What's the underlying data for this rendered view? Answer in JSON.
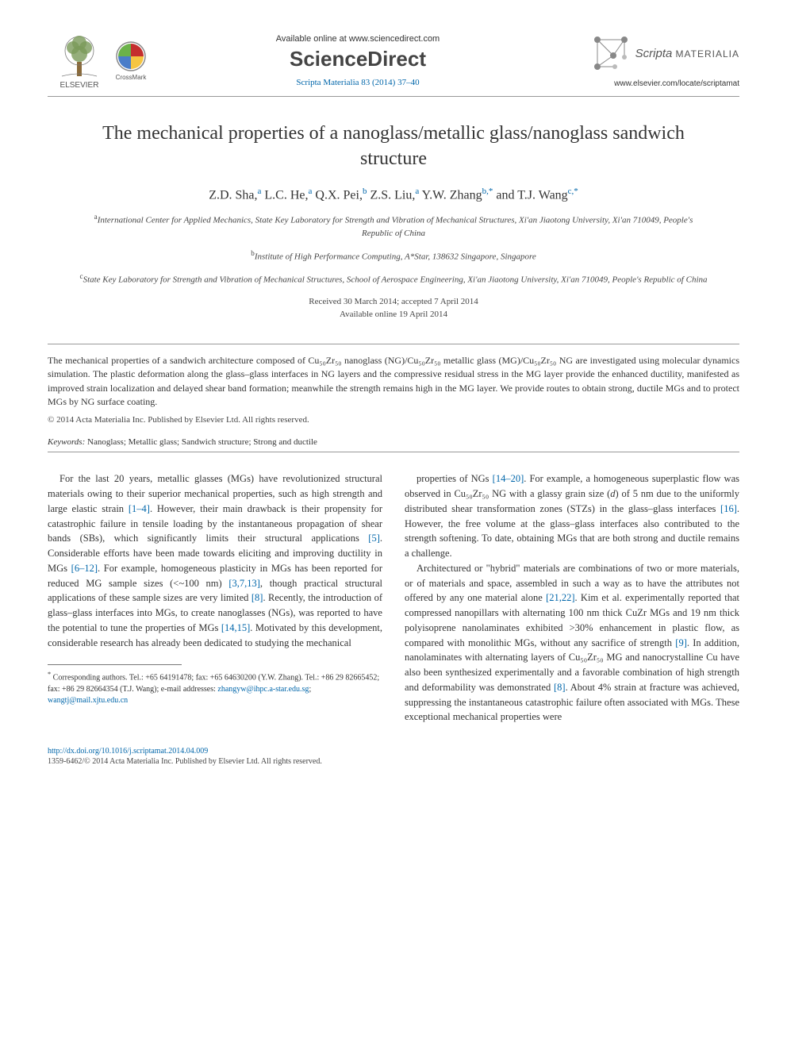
{
  "header": {
    "elsevier_label": "ELSEVIER",
    "crossmark_label": "CrossMark",
    "available_online": "Available online at www.sciencedirect.com",
    "sciencedirect": "ScienceDirect",
    "citation": "Scripta Materialia 83 (2014) 37–40",
    "journal_name_ital": "Scripta",
    "journal_name_caps": "MATERIALIA",
    "journal_url": "www.elsevier.com/locate/scriptamat"
  },
  "colors": {
    "link": "#0066aa",
    "text": "#333333",
    "rule": "#999999",
    "elsevier_orange": "#e67817",
    "crossmark_red": "#c42e2e",
    "crossmark_yellow": "#f5c542",
    "crossmark_blue": "#4a7dc9",
    "crossmark_green": "#6bb24a",
    "scripta_gray": "#888888"
  },
  "title": "The mechanical properties of a nanoglass/metallic glass/nanoglass sandwich structure",
  "authors_html": "Z.D. Sha,<sup>a</sup> L.C. He,<sup>a</sup> Q.X. Pei,<sup>b</sup> Z.S. Liu,<sup>a</sup> Y.W. Zhang<sup>b,*</sup> and T.J. Wang<sup>c,*</sup>",
  "affiliations": [
    "<sup>a</sup>International Center for Applied Mechanics, State Key Laboratory for Strength and Vibration of Mechanical Structures, Xi'an Jiaotong University, Xi'an 710049, People's Republic of China",
    "<sup>b</sup>Institute of High Performance Computing, A*Star, 138632 Singapore, Singapore",
    "<sup>c</sup>State Key Laboratory for Strength and Vibration of Mechanical Structures, School of Aerospace Engineering, Xi'an Jiaotong University, Xi'an 710049, People's Republic of China"
  ],
  "dates": {
    "received_accepted": "Received 30 March 2014; accepted 7 April 2014",
    "available": "Available online 19 April 2014"
  },
  "abstract": "The mechanical properties of a sandwich architecture composed of Cu₅₀Zr₅₀ nanoglass (NG)/Cu₅₀Zr₅₀ metallic glass (MG)/Cu₅₀Zr₅₀ NG are investigated using molecular dynamics simulation. The plastic deformation along the glass–glass interfaces in NG layers and the compressive residual stress in the MG layer provide the enhanced ductility, manifested as improved strain localization and delayed shear band formation; meanwhile the strength remains high in the MG layer. We provide routes to obtain strong, ductile MGs and to protect MGs by NG surface coating.",
  "copyright": "© 2014 Acta Materialia Inc. Published by Elsevier Ltd. All rights reserved.",
  "keywords_label": "Keywords:",
  "keywords_text": " Nanoglass; Metallic glass; Sandwich structure; Strong and ductile",
  "body": {
    "p1": "For the last 20 years, metallic glasses (MGs) have revolutionized structural materials owing to their superior mechanical properties, such as high strength and large elastic strain <span class=\"ref\">[1–4]</span>. However, their main drawback is their propensity for catastrophic failure in tensile loading by the instantaneous propagation of shear bands (SBs), which significantly limits their structural applications <span class=\"ref\">[5]</span>. Considerable efforts have been made towards eliciting and improving ductility in MGs <span class=\"ref\">[6–12]</span>. For example, homogeneous plasticity in MGs has been reported for reduced MG sample sizes (&lt;~100 nm) <span class=\"ref\">[3,7,13]</span>, though practical structural applications of these sample sizes are very limited <span class=\"ref\">[8]</span>. Recently, the introduction of glass–glass interfaces into MGs, to create nanoglasses (NGs), was reported to have the potential to tune the properties of MGs <span class=\"ref\">[14,15]</span>. Motivated by this development, considerable research has already been dedicated to studying the mechanical",
    "p2": "properties of NGs <span class=\"ref\">[14–20]</span>. For example, a homogeneous superplastic flow was observed in Cu₅₀Zr₅₀ NG with a glassy grain size (<i>d</i>) of 5 nm due to the uniformly distributed shear transformation zones (STZs) in the glass–glass interfaces <span class=\"ref\">[16]</span>. However, the free volume at the glass–glass interfaces also contributed to the strength softening. To date, obtaining MGs that are both strong and ductile remains a challenge.",
    "p3": "Architectured or \"hybrid\" materials are combinations of two or more materials, or of materials and space, assembled in such a way as to have the attributes not offered by any one material alone <span class=\"ref\">[21,22]</span>. Kim et al. experimentally reported that compressed nanopillars with alternating 100 nm thick CuZr MGs and 19 nm thick polyisoprene nanolaminates exhibited &gt;30% enhancement in plastic flow, as compared with monolithic MGs, without any sacrifice of strength <span class=\"ref\">[9]</span>. In addition, nanolaminates with alternating layers of Cu₅₀Zr₅₀ MG and nanocrystalline Cu have also been synthesized experimentally and a favorable combination of high strength and deformability was demonstrated <span class=\"ref\">[8]</span>. About 4% strain at fracture was achieved, suppressing the instantaneous catastrophic failure often associated with MGs. These exceptional mechanical properties were"
  },
  "footnote": {
    "marker": "*",
    "text": "Corresponding authors. Tel.: +65 64191478; fax: +65 64630200 (Y.W. Zhang). Tel.: +86 29 82665452; fax: +86 29 82664354 (T.J. Wang); e-mail addresses: ",
    "email1": "zhangyw@ihpc.a-star.edu.sg",
    "sep": "; ",
    "email2": "wangtj@mail.xjtu.edu.cn"
  },
  "bottom": {
    "doi": "http://dx.doi.org/10.1016/j.scriptamat.2014.04.009",
    "issn_line": "1359-6462/© 2014 Acta Materialia Inc. Published by Elsevier Ltd. All rights reserved."
  }
}
